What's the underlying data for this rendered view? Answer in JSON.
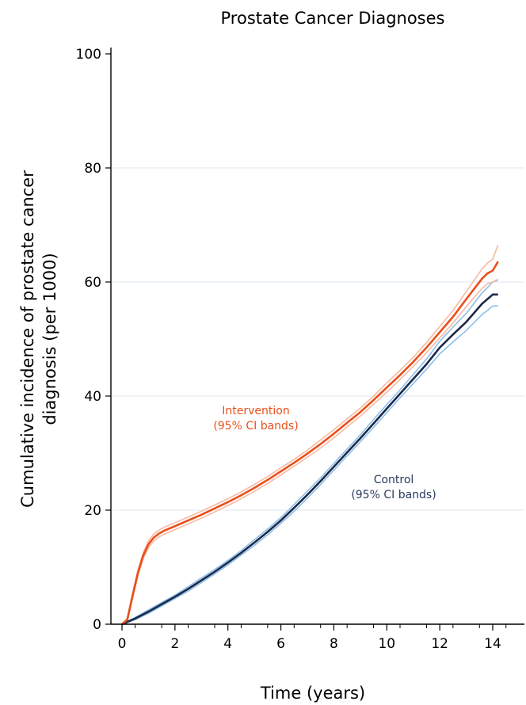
{
  "chart_data": {
    "type": "line",
    "title": "Prostate Cancer Diagnoses",
    "xlabel": "Time (years)",
    "ylabel_lines": [
      "Cumulative incidence of prostate cancer",
      "diagnosis (per 1000)"
    ],
    "xlim": [
      0,
      14.5
    ],
    "ylim": [
      0,
      100
    ],
    "x_ticks": [
      0,
      2,
      4,
      6,
      8,
      10,
      12,
      14
    ],
    "y_ticks": [
      0,
      20,
      40,
      60,
      80,
      100
    ],
    "grid_y": [
      20,
      40,
      60,
      80
    ],
    "series": [
      {
        "name_lines": [
          "Intervention",
          "(95% CI bands)"
        ],
        "color": "#e8501a",
        "band_color": "#f7b9a2",
        "x": [
          0,
          0.2,
          0.4,
          0.6,
          0.8,
          1.0,
          1.2,
          1.4,
          1.6,
          1.8,
          2.0,
          2.5,
          3.0,
          3.5,
          4.0,
          4.5,
          5.0,
          5.5,
          6.0,
          6.5,
          7.0,
          7.5,
          8.0,
          8.5,
          9.0,
          9.5,
          10.0,
          10.5,
          11.0,
          11.5,
          12.0,
          12.5,
          13.0,
          13.3,
          13.6,
          13.8,
          14.0,
          14.2
        ],
        "y": [
          0,
          0.8,
          5.0,
          9.0,
          12.0,
          14.0,
          15.2,
          15.9,
          16.4,
          16.8,
          17.2,
          18.2,
          19.2,
          20.3,
          21.4,
          22.6,
          23.9,
          25.3,
          26.8,
          28.3,
          29.9,
          31.6,
          33.4,
          35.3,
          37.2,
          39.3,
          41.5,
          43.7,
          46.0,
          48.5,
          51.2,
          53.9,
          57.0,
          58.8,
          60.6,
          61.5,
          62.0,
          63.6
        ],
        "ci_lower": [
          0,
          0.6,
          4.5,
          8.5,
          11.5,
          13.4,
          14.6,
          15.3,
          15.8,
          16.2,
          16.6,
          17.6,
          18.6,
          19.7,
          20.8,
          22.0,
          23.3,
          24.7,
          26.2,
          27.7,
          29.3,
          30.9,
          32.7,
          34.6,
          36.5,
          38.6,
          40.7,
          42.9,
          45.2,
          47.6,
          50.2,
          52.8,
          55.7,
          57.3,
          58.9,
          59.7,
          60.0,
          60.5
        ],
        "ci_upper": [
          0,
          1.0,
          5.5,
          9.5,
          12.5,
          14.6,
          15.8,
          16.5,
          17.0,
          17.4,
          17.8,
          18.8,
          19.8,
          20.9,
          22.0,
          23.2,
          24.5,
          25.9,
          27.4,
          28.9,
          30.5,
          32.3,
          34.1,
          36.0,
          37.9,
          40.0,
          42.3,
          44.5,
          46.8,
          49.4,
          52.2,
          55.0,
          58.3,
          60.3,
          62.3,
          63.3,
          64.0,
          66.5
        ]
      },
      {
        "name_lines": [
          "Control",
          "(95% CI bands)"
        ],
        "color": "#1c2a4a",
        "band_color": "#8cbfea",
        "x": [
          0,
          0.5,
          1.0,
          1.5,
          2.0,
          2.5,
          3.0,
          3.5,
          4.0,
          4.5,
          5.0,
          5.5,
          6.0,
          6.5,
          7.0,
          7.5,
          8.0,
          8.5,
          9.0,
          9.5,
          10.0,
          10.5,
          11.0,
          11.5,
          12.0,
          12.5,
          13.0,
          13.3,
          13.6,
          13.8,
          14.0,
          14.2
        ],
        "y": [
          0,
          1.0,
          2.2,
          3.5,
          4.8,
          6.2,
          7.7,
          9.2,
          10.8,
          12.5,
          14.3,
          16.2,
          18.2,
          20.4,
          22.7,
          25.1,
          27.6,
          30.1,
          32.6,
          35.2,
          37.8,
          40.4,
          43.0,
          45.6,
          48.5,
          50.8,
          53.0,
          54.6,
          56.2,
          57.0,
          57.8,
          57.8
        ],
        "ci_lower": [
          0,
          0.8,
          1.9,
          3.2,
          4.5,
          5.8,
          7.3,
          8.8,
          10.4,
          12.1,
          13.8,
          15.7,
          17.7,
          19.8,
          22.1,
          24.5,
          27.0,
          29.5,
          32.0,
          34.5,
          37.1,
          39.7,
          42.2,
          44.7,
          47.4,
          49.5,
          51.5,
          52.9,
          54.3,
          55.0,
          55.8,
          55.8
        ],
        "ci_upper": [
          0,
          1.2,
          2.5,
          3.8,
          5.1,
          6.6,
          8.1,
          9.6,
          11.2,
          12.9,
          14.8,
          16.7,
          18.7,
          21.0,
          23.3,
          25.7,
          28.2,
          30.7,
          33.2,
          35.9,
          38.5,
          41.1,
          43.8,
          46.5,
          49.6,
          52.1,
          54.5,
          56.3,
          58.1,
          59.0,
          60.0,
          60.3
        ]
      }
    ]
  }
}
